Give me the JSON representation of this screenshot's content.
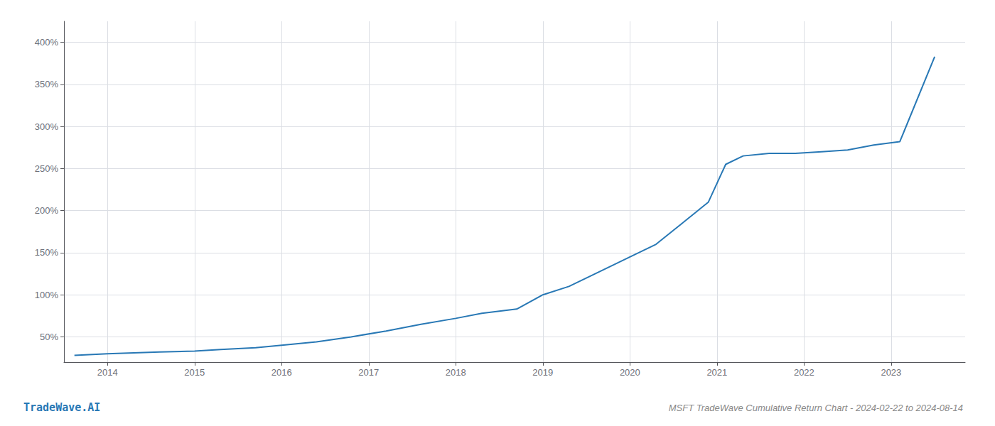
{
  "chart_data": {
    "type": "line",
    "title": "MSFT TradeWave Cumulative Return Chart - 2024-02-22 to 2024-08-14",
    "annotations": [
      "TradeWave.AI"
    ],
    "x": [
      2013.62,
      2014.0,
      2014.3,
      2014.6,
      2015.0,
      2015.3,
      2015.7,
      2016.0,
      2016.4,
      2016.8,
      2017.2,
      2017.6,
      2018.0,
      2018.3,
      2018.7,
      2019.0,
      2019.3,
      2019.6,
      2020.0,
      2020.3,
      2020.6,
      2020.9,
      2021.1,
      2021.3,
      2021.6,
      2021.9,
      2022.2,
      2022.5,
      2022.8,
      2023.1,
      2023.5
    ],
    "values": [
      28,
      30,
      31,
      32,
      33,
      35,
      37,
      40,
      44,
      50,
      57,
      65,
      72,
      78,
      83,
      100,
      110,
      125,
      145,
      160,
      185,
      210,
      255,
      265,
      268,
      268,
      270,
      272,
      278,
      282,
      383
    ],
    "color": "#2878b5",
    "xlim": [
      2013.5,
      2023.85
    ],
    "ylim": [
      20,
      425
    ],
    "xticks": [
      2014,
      2015,
      2016,
      2017,
      2018,
      2019,
      2020,
      2021,
      2022,
      2023
    ],
    "yticks": [
      {
        "value": 50,
        "label": "50%"
      },
      {
        "value": 100,
        "label": "100%"
      },
      {
        "value": 150,
        "label": "150%"
      },
      {
        "value": 200,
        "label": "200%"
      },
      {
        "value": 250,
        "label": "250%"
      },
      {
        "value": 300,
        "label": "300%"
      },
      {
        "value": 350,
        "label": "350%"
      },
      {
        "value": 400,
        "label": "400%"
      }
    ],
    "grid": true
  }
}
